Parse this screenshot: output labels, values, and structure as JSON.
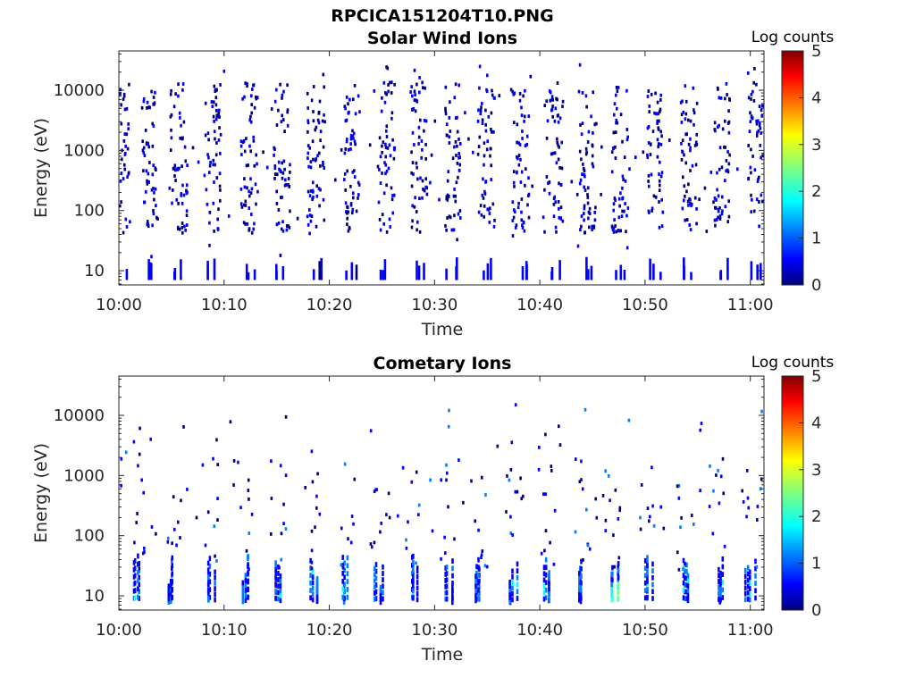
{
  "figure_title": "RPCICA151204T10.PNG",
  "colormap": [
    "#00007f",
    "#0000ff",
    "#007fff",
    "#00ffff",
    "#7fff7f",
    "#ffff00",
    "#ff7f00",
    "#ff0000",
    "#7f0000"
  ],
  "chart_data": [
    {
      "type": "heatmap",
      "title": "Solar Wind Ions",
      "xlabel": "Time",
      "ylabel": "Energy (eV)",
      "x_ticks": [
        "10:00",
        "10:10",
        "10:20",
        "10:30",
        "10:40",
        "10:50",
        "11:00"
      ],
      "x_tick_minutes": [
        0,
        10,
        20,
        30,
        40,
        50,
        60
      ],
      "xlim_minutes": [
        0,
        61.3
      ],
      "y_scale": "log",
      "y_ticks": [
        "10",
        "100",
        "1000",
        "10000"
      ],
      "y_tick_values": [
        10,
        100,
        1000,
        10000
      ],
      "ylim": [
        5.8,
        45000
      ],
      "colorbar": {
        "label": "Log counts",
        "ticks": [
          "0",
          "1",
          "2",
          "3",
          "4",
          "5"
        ],
        "range": [
          0,
          5
        ]
      },
      "bursts_minute": [
        0.2,
        2.8,
        5.6,
        8.8,
        12.3,
        15.4,
        18.6,
        22.0,
        25.3,
        28.4,
        31.6,
        34.8,
        38.1,
        41.3,
        44.4,
        47.5,
        50.9,
        54.1,
        57.2,
        60.5
      ],
      "level_profile": "low (mostly 0-1); high-energy scatter 100 eV - 30 keV plus columns near 6-20 eV"
    },
    {
      "type": "heatmap",
      "title": "Cometary Ions",
      "xlabel": "Time",
      "ylabel": "Energy (eV)",
      "x_ticks": [
        "10:00",
        "10:10",
        "10:20",
        "10:30",
        "10:40",
        "10:50",
        "11:00"
      ],
      "x_tick_minutes": [
        0,
        10,
        20,
        30,
        40,
        50,
        60
      ],
      "xlim_minutes": [
        0,
        61.3
      ],
      "y_scale": "log",
      "y_ticks": [
        "10",
        "100",
        "1000",
        "10000"
      ],
      "y_tick_values": [
        10,
        100,
        1000,
        10000
      ],
      "ylim": [
        5.8,
        45000
      ],
      "colorbar": {
        "label": "Log counts",
        "ticks": [
          "0",
          "1",
          "2",
          "3",
          "4",
          "5"
        ],
        "range": [
          0,
          5
        ]
      },
      "bursts_minute": [
        1.8,
        5.0,
        8.6,
        11.8,
        15.1,
        18.4,
        21.5,
        24.6,
        27.8,
        31.2,
        34.1,
        37.4,
        40.6,
        43.9,
        46.9,
        50.2,
        53.6,
        56.8,
        59.9
      ],
      "level_profile": "low-energy columns (6-40 eV) reaching 1.5-2.5 log counts near 10:47; sparse scatter up to ~15 keV"
    }
  ]
}
